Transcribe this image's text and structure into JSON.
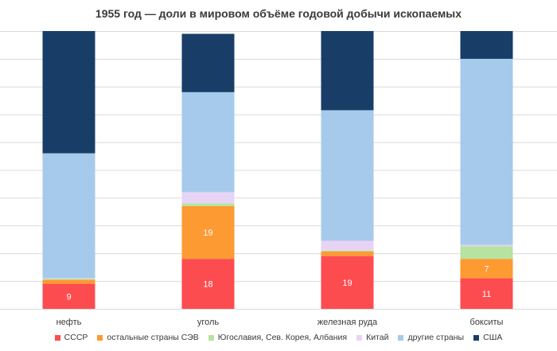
{
  "chart_data": {
    "type": "bar",
    "stacked": true,
    "title": "1955 год — доли в мировом объёме годовой добычи ископаемых",
    "xlabel": "",
    "ylabel": "",
    "ylim": [
      0,
      100
    ],
    "grid": true,
    "legend_position": "bottom",
    "categories": [
      "нефть",
      "уголь",
      "железная руда",
      "бокситы"
    ],
    "series": [
      {
        "name": "СССР",
        "color": "#fd4c50",
        "values": [
          9,
          18,
          19,
          11
        ],
        "labels": [
          "9",
          "18",
          "19",
          "11"
        ]
      },
      {
        "name": "остальные страны СЭВ",
        "color": "#fd9a32",
        "values": [
          1.5,
          19,
          1.7,
          7
        ],
        "labels": [
          "",
          "19",
          "",
          "7"
        ]
      },
      {
        "name": "Югославия, Сев. Корея, Албания",
        "color": "#b6e3a0",
        "values": [
          0.3,
          1,
          0.3,
          4.5
        ],
        "labels": [
          "",
          "",
          "",
          ""
        ]
      },
      {
        "name": "Китай",
        "color": "#e7d4f4",
        "values": [
          0.2,
          4,
          3.5,
          0.5
        ],
        "labels": [
          "",
          "",
          "",
          ""
        ]
      },
      {
        "name": "другие страны",
        "color": "#a6caec",
        "values": [
          45,
          36,
          47,
          67
        ],
        "labels": [
          "",
          "",
          "",
          ""
        ]
      },
      {
        "name": "США",
        "color": "#183e68",
        "values": [
          44,
          21,
          28.5,
          10
        ],
        "labels": [
          "",
          "",
          "",
          ""
        ]
      }
    ]
  }
}
